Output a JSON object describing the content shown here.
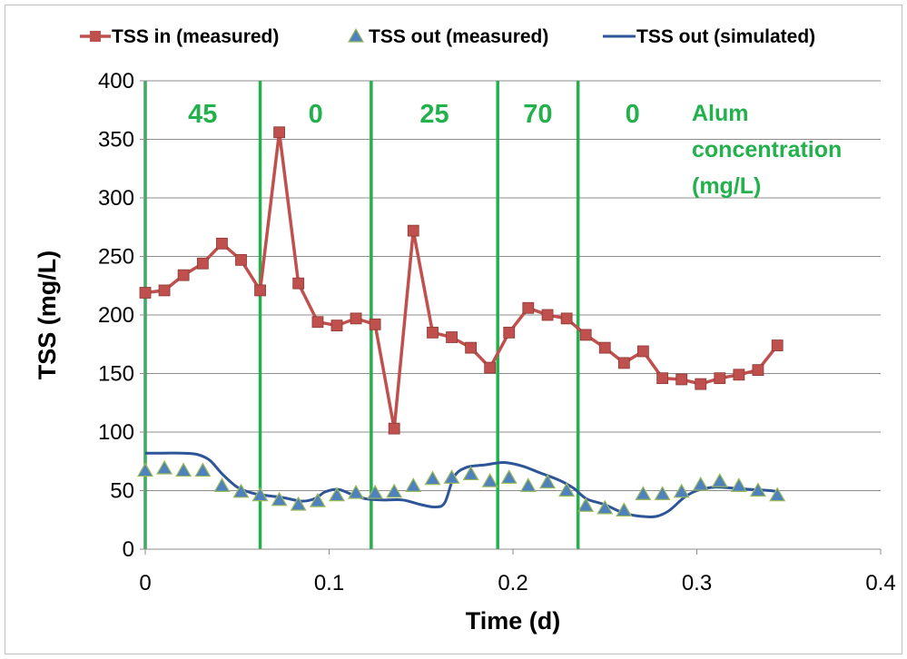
{
  "chart_data": {
    "type": "line",
    "xlabel": "Time (d)",
    "ylabel": "TSS (mg/L)",
    "xlim": [
      0,
      0.4
    ],
    "ylim": [
      0,
      400
    ],
    "xticks": [
      0,
      0.1,
      0.2,
      0.3,
      0.4
    ],
    "xtick_labels": [
      "0",
      "0.1",
      "0.2",
      "0.3",
      "0.4"
    ],
    "yticks": [
      0,
      50,
      100,
      150,
      200,
      250,
      300,
      350,
      400
    ],
    "ytick_labels": [
      "0",
      "50",
      "100",
      "150",
      "200",
      "250",
      "300",
      "350",
      "400"
    ],
    "grid": "horizontal",
    "legend_position": "top",
    "series": [
      {
        "name": "TSS in (measured)",
        "color": "#c0504d",
        "marker": "square",
        "x": [
          0,
          0.0104,
          0.0208,
          0.0313,
          0.0417,
          0.0521,
          0.0625,
          0.0729,
          0.0833,
          0.0938,
          0.1042,
          0.1146,
          0.125,
          0.1354,
          0.1458,
          0.1563,
          0.1667,
          0.1771,
          0.1875,
          0.1979,
          0.2083,
          0.2188,
          0.2292,
          0.2396,
          0.25,
          0.2604,
          0.2708,
          0.2813,
          0.2917,
          0.3021,
          0.3125,
          0.3229,
          0.3333,
          0.3438
        ],
        "y": [
          219,
          221,
          234,
          244,
          261,
          247,
          221,
          356,
          227,
          194,
          191,
          197,
          192,
          103,
          272,
          185,
          181,
          172,
          155,
          185,
          206,
          200,
          197,
          183,
          172,
          159,
          169,
          146,
          145,
          141,
          146,
          149,
          153,
          174
        ]
      },
      {
        "name": "TSS out (measured)",
        "color": "#4f81bd",
        "marker": "triangle",
        "x": [
          0,
          0.0104,
          0.0208,
          0.0313,
          0.0417,
          0.0521,
          0.0625,
          0.0729,
          0.0833,
          0.0938,
          0.1042,
          0.1146,
          0.125,
          0.1354,
          0.1458,
          0.1563,
          0.1667,
          0.1771,
          0.1875,
          0.1979,
          0.2083,
          0.2188,
          0.2292,
          0.2396,
          0.25,
          0.2604,
          0.2708,
          0.2813,
          0.2917,
          0.3021,
          0.3125,
          0.3229,
          0.3333,
          0.3438
        ],
        "y": [
          67,
          69,
          67,
          67,
          54,
          49,
          46,
          42,
          38,
          41,
          46,
          48,
          48,
          49,
          54,
          60,
          61,
          64,
          58,
          61,
          54,
          57,
          50,
          37,
          35,
          33,
          47,
          47,
          49,
          55,
          58,
          54,
          50,
          46
        ]
      },
      {
        "name": "TSS out (simulated)",
        "color": "#2e5597",
        "marker": "none",
        "x": [
          0,
          0.01,
          0.02,
          0.028,
          0.035,
          0.042,
          0.05,
          0.058,
          0.065,
          0.075,
          0.085,
          0.092,
          0.098,
          0.105,
          0.112,
          0.12,
          0.13,
          0.14,
          0.15,
          0.158,
          0.163,
          0.168,
          0.175,
          0.185,
          0.195,
          0.205,
          0.215,
          0.225,
          0.233,
          0.24,
          0.25,
          0.26,
          0.27,
          0.278,
          0.285,
          0.293,
          0.3,
          0.31,
          0.32,
          0.33,
          0.34,
          0.344
        ],
        "y": [
          82,
          82,
          82,
          81,
          76,
          64,
          53,
          48,
          46,
          44,
          41,
          43,
          49,
          51,
          47,
          43,
          42,
          42,
          38,
          36,
          40,
          62,
          70,
          72,
          74,
          71,
          65,
          59,
          52,
          43,
          38,
          31,
          28,
          28,
          33,
          44,
          50,
          53,
          52,
          51,
          50,
          49
        ]
      }
    ],
    "phase_boundaries": [
      0,
      0.0625,
      0.1229,
      0.1917,
      0.2354
    ],
    "phase_labels": [
      "45",
      "0",
      "25",
      "70",
      "0"
    ],
    "phase_note": [
      "Alum",
      "concentration",
      "(mg/L)"
    ],
    "phase_color": "#22b14c"
  }
}
